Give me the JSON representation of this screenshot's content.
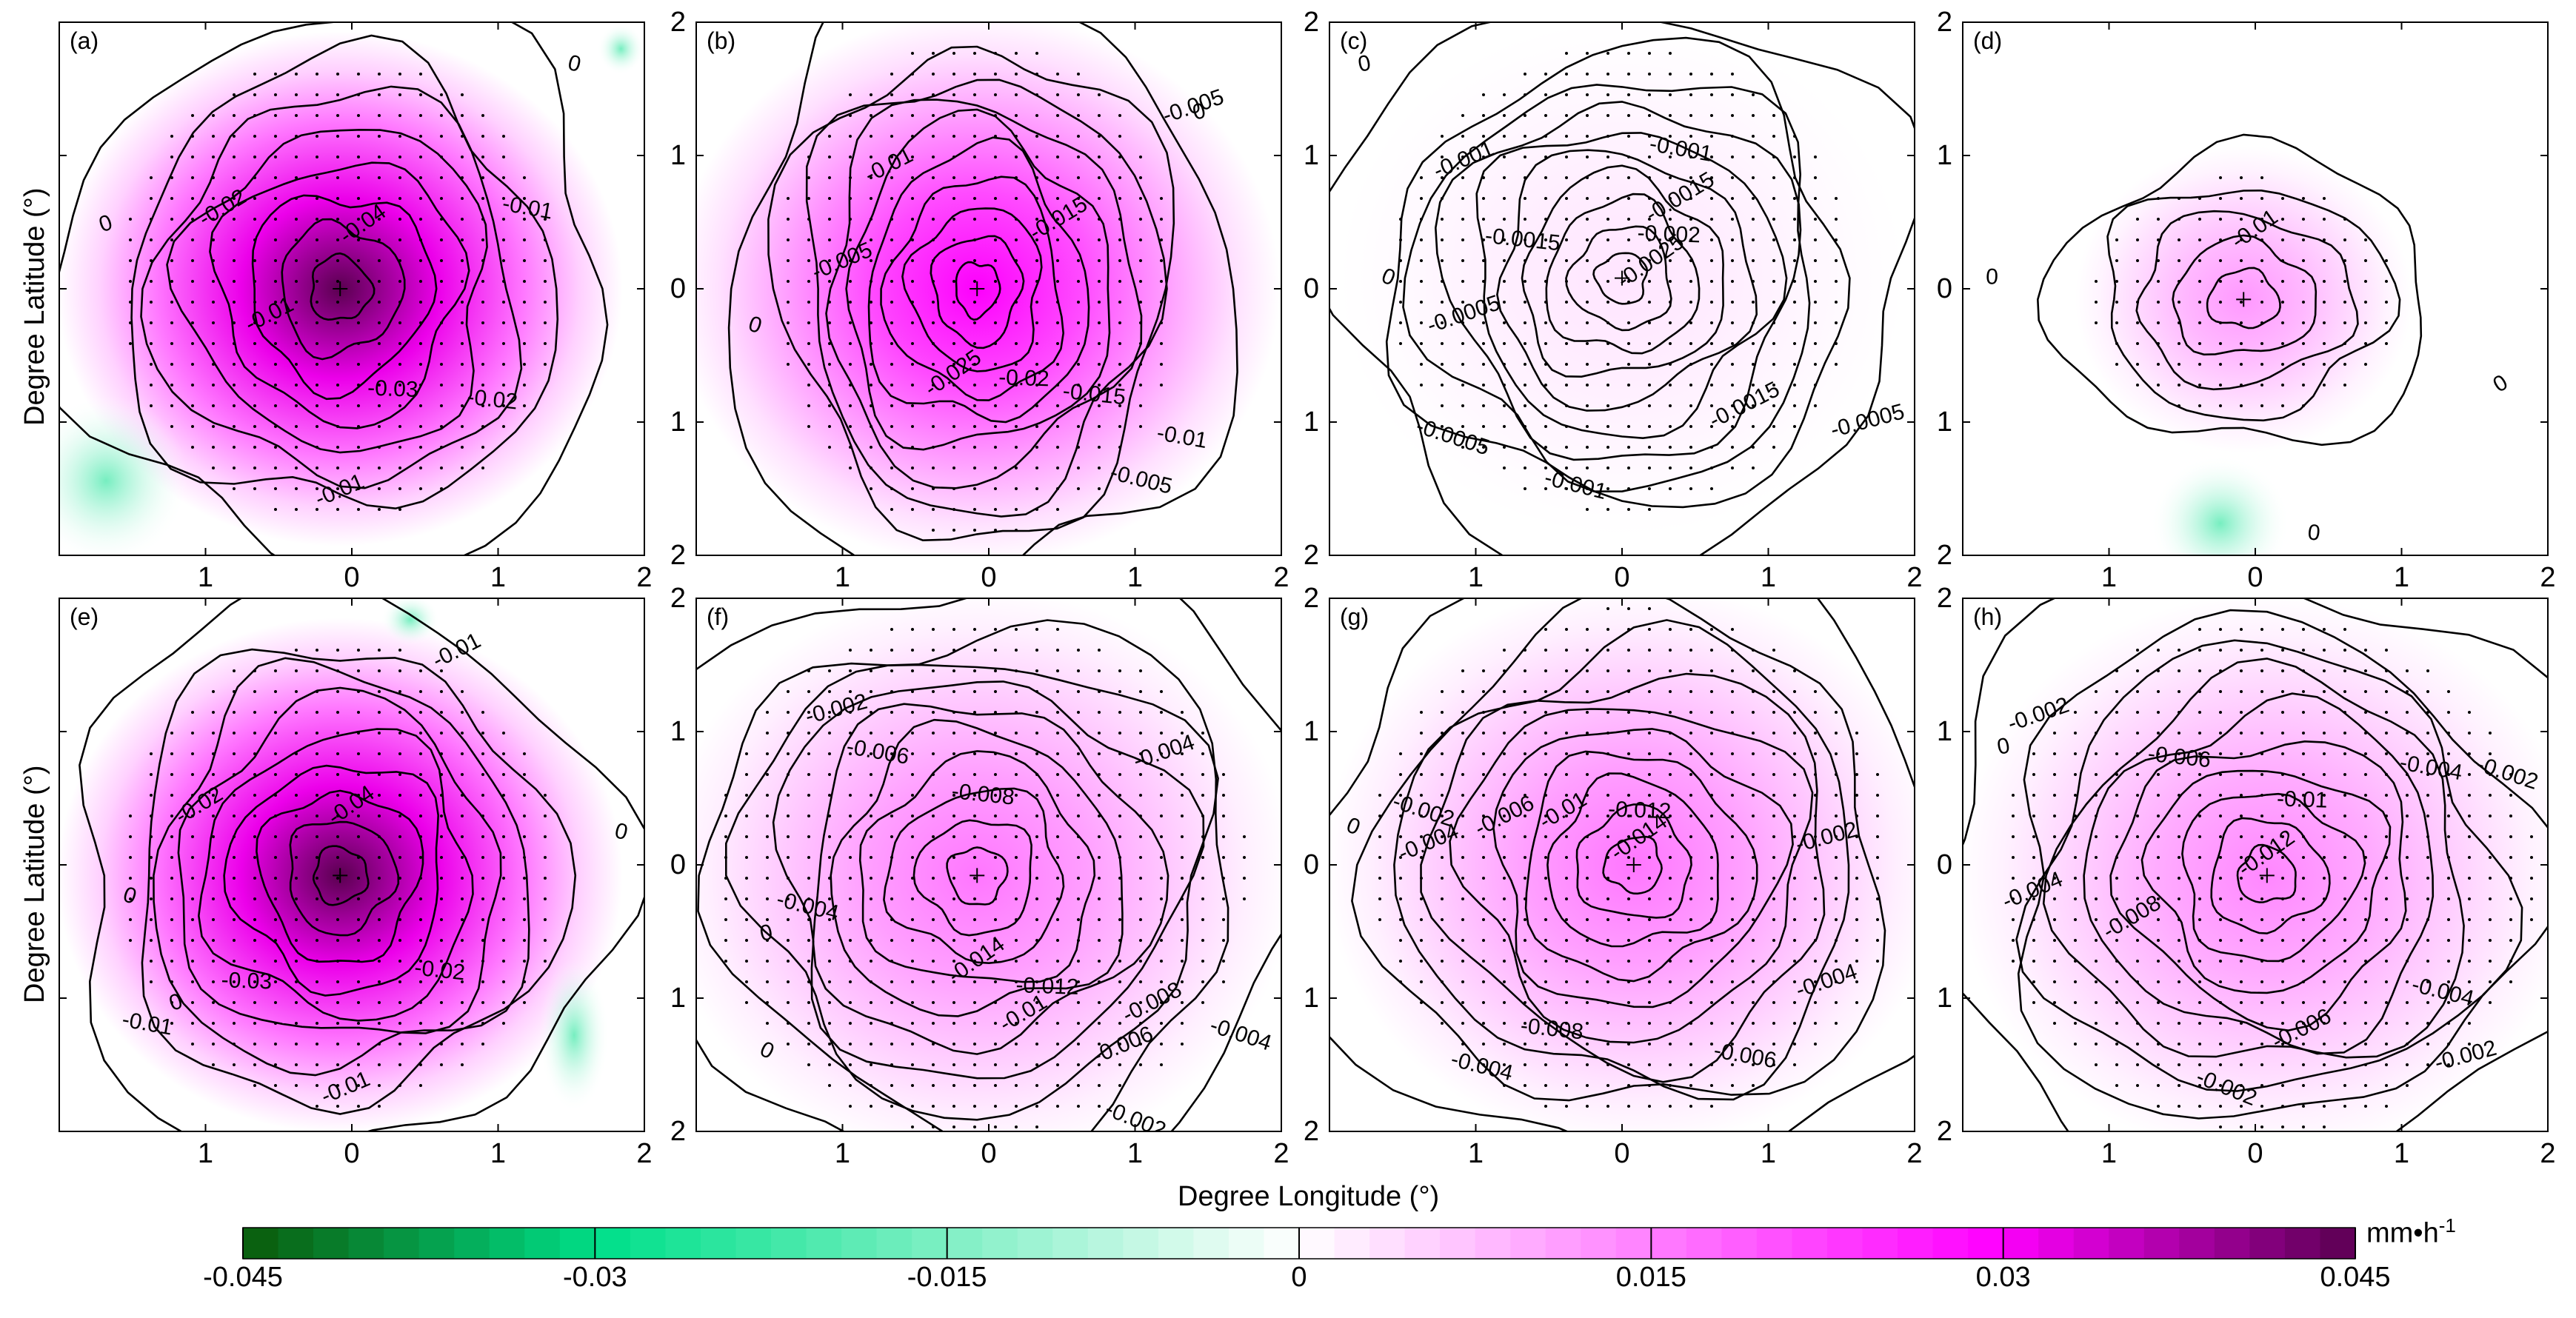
{
  "chart_data": {
    "type": "contour",
    "panel_labels": [
      "(a)",
      "(b)",
      "(c)",
      "(d)",
      "(e)",
      "(f)",
      "(g)",
      "(h)"
    ],
    "x_ticks": [
      "1",
      "0",
      "1",
      "2"
    ],
    "y_ticks": [
      "2",
      "1",
      "0",
      "1",
      "2"
    ],
    "xlabel": "Degree Longitude (°)",
    "ylabel": "Degree Latitude (°)",
    "colorbar": {
      "ticks": [
        "-0.045",
        "-0.03",
        "-0.015",
        "0",
        "0.015",
        "0.03",
        "0.045"
      ],
      "range": [
        -0.045,
        0.045
      ],
      "unit": "mm•h",
      "unit_exp": "-1",
      "colors": {
        "min": "#0a5a0a",
        "mid_neg": "#00e08a",
        "zero": "#ffffff",
        "mid_pos": "#ff00ff",
        "max": "#5a0050"
      }
    },
    "panels": [
      {
        "label": "(a)",
        "center_value": -0.045,
        "contour_labels": [
          "-0.04",
          "-0.03",
          "-0.02",
          "-0.02",
          "-0.01",
          "-0.01",
          "-0.01",
          "0",
          "0"
        ]
      },
      {
        "label": "(b)",
        "center_value": -0.03,
        "contour_labels": [
          "-0.025",
          "-0.02",
          "-0.015",
          "-0.015",
          "-0.01",
          "-0.01",
          "-0.005",
          "-0.005",
          "-0.005",
          "0",
          "0"
        ]
      },
      {
        "label": "(c)",
        "center_value": -0.003,
        "contour_labels": [
          "-0.0025",
          "-0.002",
          "-0.0015",
          "-0.0015",
          "-0.0015",
          "-0.001",
          "-0.001",
          "-0.001",
          "-0.0005",
          "-0.0005",
          "-0.0005",
          "0",
          "0"
        ]
      },
      {
        "label": "(d)",
        "center_value": -0.012,
        "contour_labels": [
          "-0.01",
          "0",
          "0",
          "0"
        ]
      },
      {
        "label": "(e)",
        "center_value": -0.045,
        "contour_labels": [
          "-0.04",
          "-0.03",
          "-0.02",
          "-0.02",
          "-0.01",
          "-0.01",
          "-0.01",
          "0",
          "0",
          "0"
        ]
      },
      {
        "label": "(f)",
        "center_value": -0.016,
        "contour_labels": [
          "-0.014",
          "-0.012",
          "-0.01",
          "-0.008",
          "-0.008",
          "-0.006",
          "-0.006",
          "-0.004",
          "-0.004",
          "-0.004",
          "-0.002",
          "-0.002",
          "0",
          "0"
        ]
      },
      {
        "label": "(g)",
        "center_value": -0.016,
        "contour_labels": [
          "-0.014",
          "-0.012",
          "-0.01",
          "-0.008",
          "-0.006",
          "-0.006",
          "-0.004",
          "-0.004",
          "-0.004",
          "-0.002",
          "-0.002",
          "0"
        ]
      },
      {
        "label": "(h)",
        "center_value": -0.014,
        "contour_labels": [
          "-0.012",
          "-0.01",
          "-0.008",
          "-0.006",
          "-0.006",
          "-0.004",
          "-0.004",
          "-0.004",
          "-0.002",
          "-0.002",
          "-0.002",
          "-0.002",
          "0"
        ]
      }
    ]
  }
}
